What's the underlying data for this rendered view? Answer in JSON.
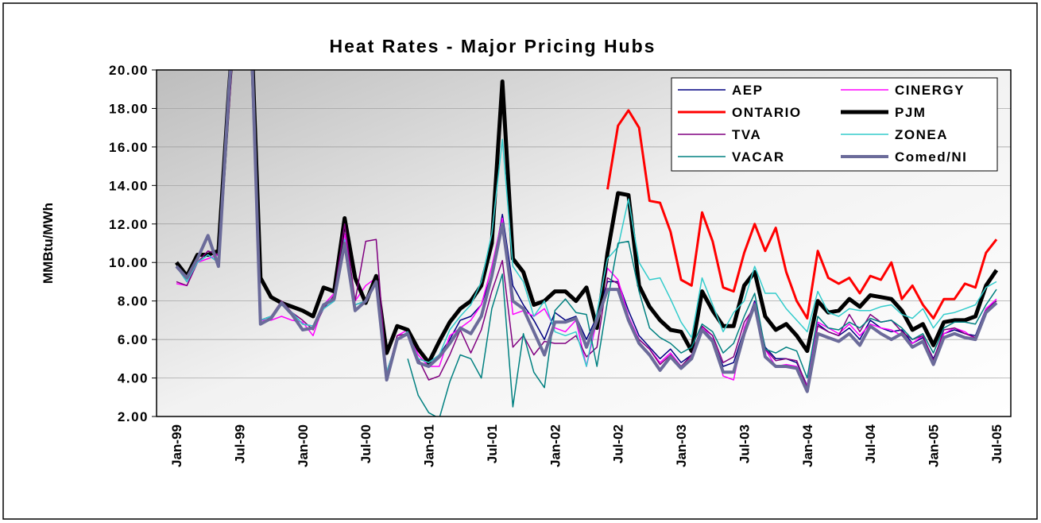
{
  "chart_data": {
    "type": "line",
    "title": "Heat Rates - Major Pricing Hubs",
    "y_label": "MMBtu/MWh",
    "categories": [
      "Jan-99",
      null,
      null,
      null,
      null,
      null,
      "Jul-99",
      null,
      null,
      null,
      null,
      null,
      "Jan-00",
      null,
      null,
      null,
      null,
      null,
      "Jul-00",
      null,
      null,
      null,
      null,
      null,
      "Jan-01",
      null,
      null,
      null,
      null,
      null,
      "Jul-01",
      null,
      null,
      null,
      null,
      null,
      "Jan-02",
      null,
      null,
      null,
      null,
      null,
      "Jul-02",
      null,
      null,
      null,
      null,
      null,
      "Jan-03",
      null,
      null,
      null,
      null,
      null,
      "Jul-03",
      null,
      null,
      null,
      null,
      null,
      "Jan-04",
      null,
      null,
      null,
      null,
      null,
      "Jul-04",
      null,
      null,
      null,
      null,
      null,
      "Jan-05",
      null,
      null,
      null,
      null,
      null,
      "Jul-05"
    ],
    "ylim": [
      2,
      20
    ],
    "yticks": [
      {
        "value": 2,
        "label": "2.00"
      },
      {
        "value": 4,
        "label": "4.00"
      },
      {
        "value": 6,
        "label": "6.00"
      },
      {
        "value": 8,
        "label": "8.00"
      },
      {
        "value": 10,
        "label": "10.00"
      },
      {
        "value": 12,
        "label": "12.00"
      },
      {
        "value": 14,
        "label": "14.00"
      },
      {
        "value": 16,
        "label": "16.00"
      },
      {
        "value": 18,
        "label": "18.00"
      },
      {
        "value": 20,
        "label": "20.00"
      }
    ],
    "grid": true,
    "legend": "upper right",
    "series": [
      {
        "name": "AEP",
        "color": "#000080",
        "width": 1.5,
        "values": [
          9.8,
          9.0,
          10.0,
          10.4,
          10.0,
          18.5,
          26,
          24,
          7.0,
          7.2,
          7.8,
          7.4,
          6.8,
          6.7,
          7.6,
          8.0,
          11.2,
          7.8,
          8.0,
          9.0,
          4.3,
          6.0,
          6.4,
          5.0,
          4.8,
          5.2,
          6.0,
          7.0,
          7.2,
          7.8,
          9.4,
          12.5,
          8.8,
          7.8,
          7.0,
          6.0,
          7.4,
          7.0,
          7.2,
          6.0,
          7.2,
          9.0,
          9.0,
          7.5,
          6.2,
          5.6,
          5.0,
          5.5,
          4.8,
          5.2,
          6.6,
          6.0,
          4.6,
          4.8,
          6.5,
          8.0,
          5.6,
          5.0,
          5.0,
          4.8,
          3.6,
          6.8,
          6.4,
          6.2,
          6.6,
          6.0,
          7.0,
          6.6,
          6.4,
          6.5,
          5.8,
          6.1,
          5.0,
          6.3,
          6.5,
          6.3,
          6.2,
          7.6,
          8.0
        ]
      },
      {
        "name": "CINERGY",
        "color": "#ff00ff",
        "width": 1.5,
        "values": [
          8.9,
          8.8,
          10.0,
          10.2,
          10.4,
          18,
          26,
          24,
          7.0,
          7.0,
          7.2,
          7.0,
          6.9,
          6.2,
          7.8,
          8.4,
          11.5,
          8.0,
          8.8,
          9.2,
          4.1,
          6.2,
          6.5,
          5.2,
          4.6,
          4.6,
          6.2,
          6.6,
          7.0,
          7.8,
          9.8,
          12.3,
          7.3,
          7.5,
          7.2,
          7.6,
          6.6,
          6.4,
          7.0,
          4.6,
          7.0,
          9.7,
          9.1,
          7.2,
          6.0,
          5.5,
          4.8,
          5.3,
          4.6,
          5.1,
          6.6,
          6.2,
          4.1,
          3.9,
          6.6,
          7.9,
          5.5,
          4.6,
          4.7,
          4.6,
          3.6,
          6.9,
          6.6,
          6.3,
          6.8,
          6.2,
          6.8,
          6.6,
          6.5,
          6.2,
          5.8,
          6.2,
          4.9,
          6.3,
          6.6,
          6.4,
          6.0,
          7.6,
          8.1
        ]
      },
      {
        "name": "ONTARIO",
        "color": "#ff0000",
        "width": 3,
        "values": [
          null,
          null,
          null,
          null,
          null,
          null,
          null,
          null,
          null,
          null,
          null,
          null,
          null,
          null,
          null,
          null,
          null,
          null,
          null,
          null,
          null,
          null,
          null,
          null,
          null,
          null,
          null,
          null,
          null,
          null,
          null,
          null,
          null,
          null,
          null,
          null,
          null,
          null,
          null,
          null,
          null,
          13.8,
          17.1,
          17.9,
          17.0,
          13.2,
          13.1,
          11.6,
          9.1,
          8.8,
          12.6,
          11.1,
          8.7,
          8.5,
          10.5,
          12.0,
          10.6,
          11.8,
          9.5,
          8.0,
          7.1,
          10.6,
          9.2,
          8.9,
          9.2,
          8.4,
          9.3,
          9.1,
          10.0,
          8.1,
          8.8,
          7.8,
          7.1,
          8.1,
          8.1,
          8.9,
          8.7,
          10.5,
          11.2
        ]
      },
      {
        "name": "PJM",
        "color": "#000000",
        "width": 5,
        "values": [
          10.0,
          9.3,
          10.4,
          10.4,
          10.6,
          19,
          26,
          24,
          9.2,
          8.2,
          7.9,
          7.7,
          7.5,
          7.2,
          8.7,
          8.5,
          12.3,
          9.2,
          7.9,
          9.3,
          5.3,
          6.7,
          6.5,
          5.5,
          4.8,
          5.9,
          6.9,
          7.6,
          8.0,
          8.8,
          11.0,
          19.4,
          10.2,
          9.5,
          7.8,
          8.0,
          8.5,
          8.5,
          8.0,
          8.7,
          6.6,
          10.5,
          13.6,
          13.5,
          8.8,
          7.7,
          7.0,
          6.5,
          6.4,
          5.4,
          8.5,
          7.5,
          6.7,
          6.7,
          8.8,
          9.5,
          7.2,
          6.5,
          6.8,
          6.2,
          5.4,
          8.0,
          7.4,
          7.5,
          8.1,
          7.7,
          8.3,
          8.2,
          8.1,
          7.5,
          6.5,
          6.8,
          5.7,
          6.9,
          7.0,
          7.0,
          7.2,
          8.8,
          9.6
        ]
      },
      {
        "name": "TVA",
        "color": "#800080",
        "width": 1.5,
        "values": [
          9.0,
          8.8,
          10.0,
          10.6,
          10.4,
          18,
          26,
          24,
          7.0,
          7.2,
          8.0,
          7.4,
          7.0,
          6.5,
          7.6,
          8.3,
          12.0,
          8.0,
          11.1,
          11.2,
          4.1,
          6.2,
          6.3,
          5.0,
          3.9,
          4.1,
          5.2,
          6.5,
          5.3,
          6.5,
          8.5,
          10.1,
          5.6,
          6.2,
          5.2,
          5.9,
          5.8,
          5.8,
          6.2,
          5.1,
          5.6,
          9.2,
          8.9,
          6.9,
          6.0,
          5.5,
          4.7,
          5.2,
          4.6,
          5.2,
          6.7,
          6.2,
          4.8,
          5.1,
          6.9,
          7.7,
          5.5,
          4.9,
          5.0,
          4.9,
          3.5,
          6.7,
          6.4,
          6.2,
          7.3,
          6.4,
          7.3,
          6.9,
          7.0,
          6.4,
          6.0,
          6.2,
          4.9,
          6.5,
          6.6,
          6.3,
          6.1,
          7.5,
          8.0
        ]
      },
      {
        "name": "ZONEA",
        "color": "#33cccc",
        "width": 1.5,
        "values": [
          9.8,
          9.0,
          10.0,
          10.4,
          10.0,
          18.5,
          26,
          24,
          7.0,
          7.2,
          7.8,
          7.4,
          6.8,
          6.7,
          7.6,
          8.0,
          11.2,
          7.8,
          8.0,
          9.0,
          4.3,
          6.0,
          6.4,
          5.0,
          4.8,
          5.2,
          6.5,
          7.2,
          7.8,
          9.0,
          11.5,
          16.4,
          9.8,
          9.0,
          7.2,
          8.0,
          6.4,
          6.2,
          6.4,
          4.6,
          7.4,
          10.2,
          10.8,
          13.3,
          10.0,
          9.1,
          9.2,
          8.1,
          6.9,
          6.1,
          9.2,
          7.8,
          6.4,
          7.4,
          8.0,
          9.8,
          8.4,
          8.4,
          7.6,
          7.0,
          6.4,
          8.5,
          7.4,
          7.2,
          7.6,
          7.5,
          7.5,
          7.7,
          7.8,
          7.3,
          7.1,
          7.6,
          6.6,
          7.3,
          7.4,
          7.6,
          7.8,
          8.7,
          9.0
        ]
      },
      {
        "name": "VACAR",
        "color": "#008080",
        "width": 1.5,
        "values": [
          null,
          null,
          null,
          null,
          null,
          null,
          null,
          null,
          null,
          null,
          null,
          null,
          null,
          null,
          null,
          null,
          null,
          null,
          null,
          null,
          null,
          null,
          5.0,
          3.1,
          2.2,
          1.9,
          3.8,
          5.2,
          5.0,
          4.0,
          7.6,
          9.4,
          2.5,
          6.3,
          4.3,
          3.5,
          7.5,
          8.1,
          7.4,
          7.3,
          4.6,
          8.0,
          11.0,
          11.1,
          8.5,
          6.6,
          6.1,
          5.8,
          5.3,
          5.6,
          6.8,
          6.4,
          5.3,
          5.8,
          7.2,
          8.4,
          5.5,
          5.3,
          5.6,
          5.4,
          4.0,
          7.2,
          6.6,
          6.5,
          6.9,
          6.6,
          7.1,
          6.9,
          7.0,
          6.6,
          6.0,
          6.3,
          5.3,
          6.6,
          6.9,
          6.9,
          6.8,
          7.8,
          8.6
        ]
      },
      {
        "name": "Comed/NI",
        "color": "#6b6b9a",
        "width": 4,
        "values": [
          9.8,
          9.2,
          10.2,
          11.4,
          9.8,
          19,
          26,
          24,
          6.8,
          7.1,
          7.9,
          7.3,
          6.5,
          6.6,
          7.8,
          8.1,
          11.0,
          7.5,
          8.0,
          9.0,
          3.9,
          6.0,
          6.3,
          4.8,
          4.6,
          5.1,
          5.8,
          6.6,
          6.3,
          7.2,
          9.3,
          12.0,
          8.0,
          7.6,
          6.4,
          5.2,
          6.9,
          6.9,
          7.1,
          5.6,
          7.0,
          8.6,
          8.6,
          7.0,
          5.8,
          5.2,
          4.4,
          5.1,
          4.5,
          5.0,
          6.5,
          5.9,
          4.3,
          4.3,
          6.3,
          7.8,
          5.1,
          4.6,
          4.6,
          4.5,
          3.3,
          6.3,
          6.1,
          5.9,
          6.3,
          5.7,
          6.7,
          6.3,
          6.0,
          6.3,
          5.6,
          5.9,
          4.7,
          6.1,
          6.3,
          6.1,
          6.0,
          7.4,
          7.9
        ]
      }
    ]
  }
}
